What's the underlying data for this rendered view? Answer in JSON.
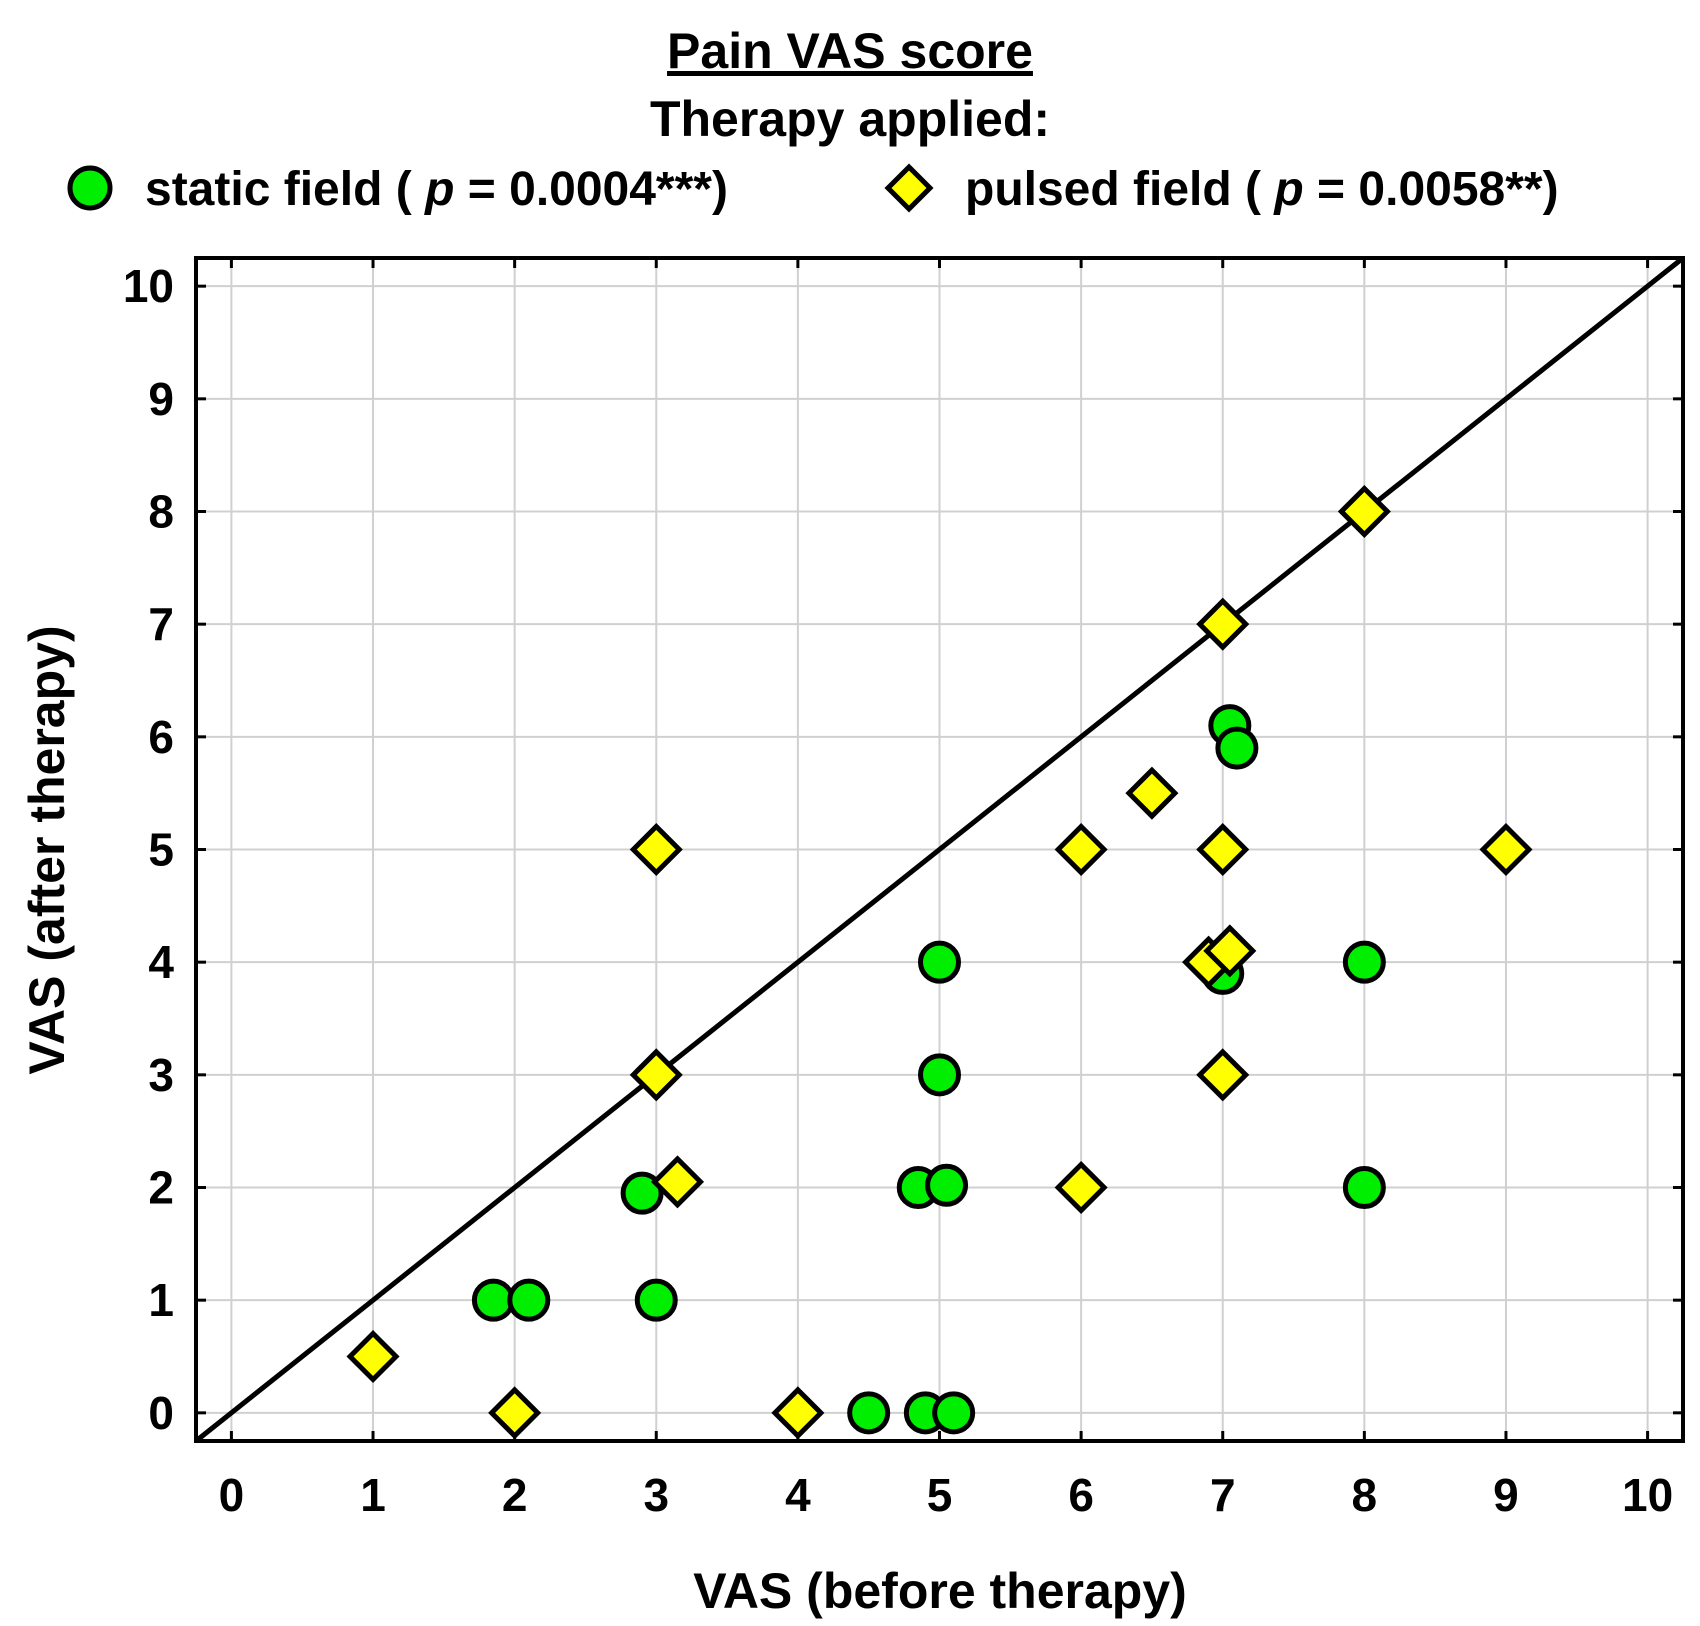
{
  "chart_data": {
    "type": "scatter",
    "title": "Pain VAS score",
    "subtitle": "Therapy applied:",
    "xlabel": "VAS (before therapy)",
    "ylabel": "VAS (after therapy)",
    "xlim": [
      -0.25,
      10.25
    ],
    "ylim": [
      -0.25,
      10.25
    ],
    "xticks": [
      "0",
      "1",
      "2",
      "3",
      "4",
      "5",
      "6",
      "7",
      "8",
      "9",
      "10"
    ],
    "yticks": [
      "0",
      "1",
      "2",
      "3",
      "4",
      "5",
      "6",
      "7",
      "8",
      "9",
      "10"
    ],
    "grid": true,
    "reference_line": {
      "label": "y = x",
      "from": [
        -0.25,
        -0.25
      ],
      "to": [
        10.25,
        10.25
      ]
    },
    "legend": {
      "position": "top",
      "static": {
        "name": "static field",
        "p_prefix": "(",
        "p_symbol": "p",
        "p_value": " = 0.0004***)"
      },
      "pulsed": {
        "name": "pulsed field",
        "p_prefix": "(",
        "p_symbol": "p",
        "p_value": " = 0.0058**)"
      }
    },
    "series": [
      {
        "name": "static field",
        "marker": "circle",
        "color": "#00ee00",
        "points": [
          [
            1.85,
            1
          ],
          [
            2.1,
            1
          ],
          [
            3.0,
            1
          ],
          [
            2.9,
            1.95
          ],
          [
            4.5,
            0
          ],
          [
            4.9,
            0
          ],
          [
            5.1,
            0
          ],
          [
            4.85,
            2
          ],
          [
            5.05,
            2.02
          ],
          [
            5.0,
            3
          ],
          [
            5.0,
            4
          ],
          [
            7.0,
            3.9
          ],
          [
            7.05,
            6.1
          ],
          [
            7.1,
            5.9
          ],
          [
            8.0,
            4
          ],
          [
            8.0,
            2
          ]
        ]
      },
      {
        "name": "pulsed field",
        "marker": "diamond",
        "color": "#ffff00",
        "points": [
          [
            1.0,
            0.5
          ],
          [
            2.0,
            0
          ],
          [
            4.0,
            0
          ],
          [
            3.0,
            5
          ],
          [
            3.0,
            3
          ],
          [
            3.15,
            2.05
          ],
          [
            6.0,
            5
          ],
          [
            6.0,
            2
          ],
          [
            6.5,
            5.5
          ],
          [
            7.0,
            7
          ],
          [
            7.0,
            5
          ],
          [
            6.9,
            4
          ],
          [
            7.05,
            4.1
          ],
          [
            7.0,
            3
          ],
          [
            8.0,
            8
          ],
          [
            9.0,
            5
          ]
        ]
      }
    ]
  }
}
